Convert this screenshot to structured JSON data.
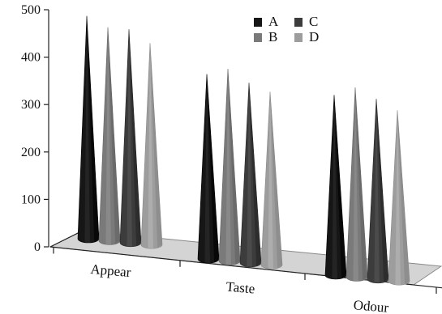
{
  "chart_data": {
    "type": "bar",
    "mark_shape": "3d-cone",
    "categories": [
      "Appear",
      "Taste",
      "Odour"
    ],
    "series": [
      {
        "name": "A",
        "values": [
          470,
          390,
          380
        ]
      },
      {
        "name": "B",
        "values": [
          450,
          405,
          400
        ]
      },
      {
        "name": "C",
        "values": [
          450,
          380,
          380
        ]
      },
      {
        "name": "D",
        "values": [
          425,
          365,
          360
        ]
      }
    ],
    "y_ticks": [
      "0",
      "100",
      "200",
      "300",
      "400",
      "500"
    ],
    "ylim": [
      0,
      500
    ],
    "title": "",
    "xlabel": "",
    "ylabel": "",
    "legend_position": "top-right",
    "grid": false,
    "colors": {
      "A": "#161616",
      "B": "#7a7a7a",
      "C": "#3c3c3c",
      "D": "#9d9d9d",
      "floor": "#d4d4d4",
      "axis": "#222222"
    }
  }
}
